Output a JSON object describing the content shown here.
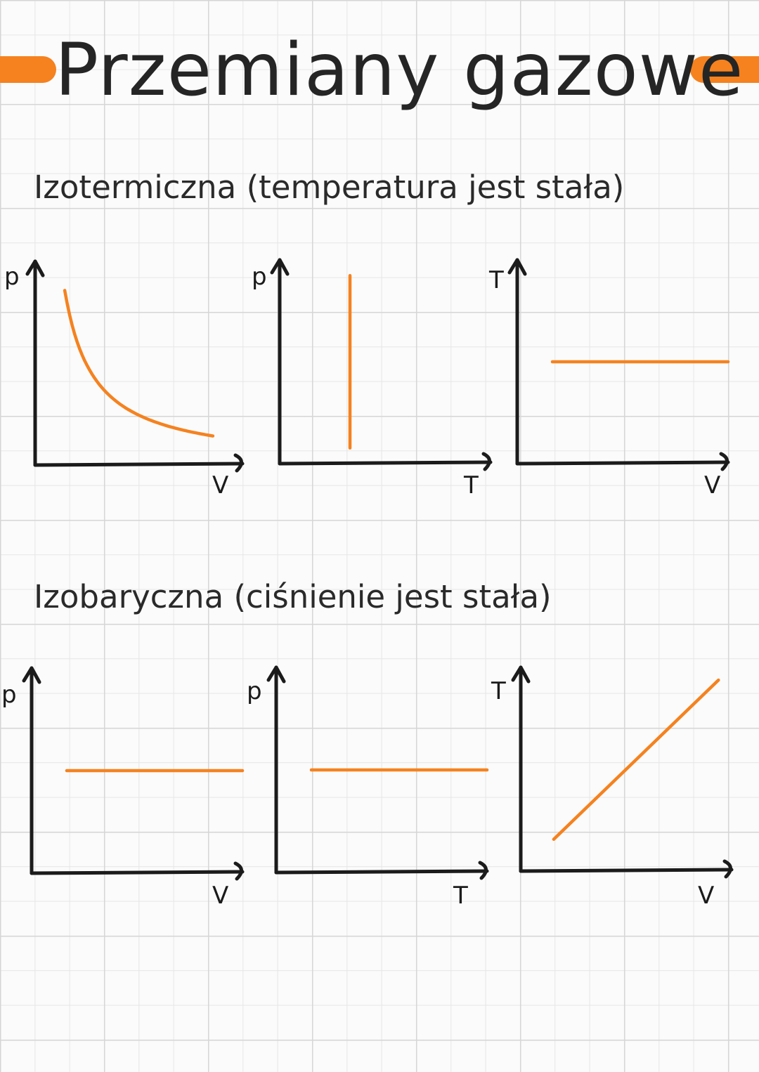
{
  "page": {
    "title": "Przemiany gazowe",
    "accent_color": "#f5821f",
    "axis_color": "#1b1b1b"
  },
  "sections": [
    {
      "title": "Izotermiczna (temperatura jest stała)"
    },
    {
      "title": "Izobaryczna (ciśnienie jest stała)"
    }
  ],
  "chart_data": [
    {
      "type": "line",
      "shape": "hyperbola-decreasing",
      "xlabel": "V",
      "ylabel": "p",
      "x": [
        1,
        1.5,
        2,
        3,
        4,
        5,
        6
      ],
      "y": [
        6,
        4,
        3,
        2,
        1.5,
        1.2,
        1
      ],
      "xlim": [
        0,
        7
      ],
      "ylim": [
        0,
        7
      ],
      "grid": false
    },
    {
      "type": "line",
      "shape": "vertical",
      "xlabel": "T",
      "ylabel": "p",
      "x": [
        1,
        1
      ],
      "y": [
        0.5,
        6
      ],
      "xlim": [
        0,
        3
      ],
      "ylim": [
        0,
        6.5
      ],
      "grid": false
    },
    {
      "type": "line",
      "shape": "horizontal",
      "xlabel": "V",
      "ylabel": "T",
      "x": [
        0.5,
        3
      ],
      "y": [
        1,
        1
      ],
      "xlim": [
        0,
        3
      ],
      "ylim": [
        0,
        2
      ],
      "grid": false
    },
    {
      "type": "line",
      "shape": "horizontal",
      "xlabel": "V",
      "ylabel": "p",
      "x": [
        0.5,
        3
      ],
      "y": [
        1,
        1
      ],
      "xlim": [
        0,
        3
      ],
      "ylim": [
        0,
        2
      ],
      "grid": false
    },
    {
      "type": "line",
      "shape": "horizontal",
      "xlabel": "T",
      "ylabel": "p",
      "x": [
        0.5,
        3
      ],
      "y": [
        1,
        1
      ],
      "xlim": [
        0,
        3
      ],
      "ylim": [
        0,
        2
      ],
      "grid": false
    },
    {
      "type": "line",
      "shape": "linear-increasing",
      "xlabel": "V",
      "ylabel": "T",
      "x": [
        0.5,
        3
      ],
      "y": [
        0.5,
        3
      ],
      "xlim": [
        0,
        3.2
      ],
      "ylim": [
        0,
        3.2
      ],
      "grid": false
    }
  ]
}
